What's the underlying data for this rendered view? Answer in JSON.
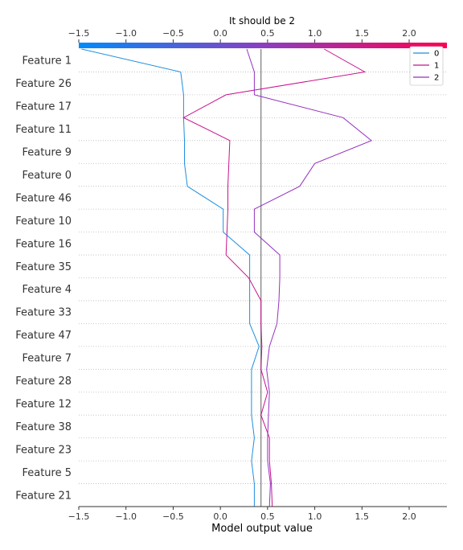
{
  "chart_data": {
    "type": "line",
    "title": "It should be 2",
    "xlabel": "Model output value",
    "xlim": [
      -1.5,
      2.4
    ],
    "xticks": [
      -1.5,
      -1.0,
      -0.5,
      0.0,
      0.5,
      1.0,
      1.5,
      2.0
    ],
    "tick_labels": [
      "−1.5",
      "−1.0",
      "−0.5",
      "0.0",
      "0.5",
      "1.0",
      "1.5",
      "2.0"
    ],
    "base_value": 0.43,
    "grid": "dotted horizontal",
    "legend_position": "top-right",
    "colorbar": {
      "from": "#008bfb",
      "to": "#ff0052"
    },
    "features": [
      "Feature 1",
      "Feature 26",
      "Feature 17",
      "Feature 11",
      "Feature 9",
      "Feature 0",
      "Feature 46",
      "Feature 10",
      "Feature 16",
      "Feature 35",
      "Feature 4",
      "Feature 33",
      "Feature 47",
      "Feature 7",
      "Feature 28",
      "Feature 12",
      "Feature 38",
      "Feature 23",
      "Feature 5",
      "Feature 21"
    ],
    "series": [
      {
        "name": "0",
        "color": "#1f8ee0",
        "values": [
          -1.47,
          -0.42,
          -0.39,
          -0.39,
          -0.38,
          -0.38,
          -0.35,
          0.03,
          0.03,
          0.31,
          0.31,
          0.31,
          0.31,
          0.41,
          0.33,
          0.33,
          0.33,
          0.36,
          0.33,
          0.36,
          0.36
        ]
      },
      {
        "name": "1",
        "color": "#c8138e",
        "values": [
          1.1,
          1.53,
          0.06,
          -0.39,
          0.1,
          0.09,
          0.08,
          0.08,
          0.07,
          0.06,
          0.3,
          0.43,
          0.43,
          0.44,
          0.43,
          0.5,
          0.43,
          0.52,
          0.52,
          0.54,
          0.55
        ]
      },
      {
        "name": "2",
        "color": "#9532c0",
        "values": [
          0.28,
          0.36,
          0.36,
          1.3,
          1.6,
          1.0,
          0.84,
          0.36,
          0.36,
          0.63,
          0.63,
          0.62,
          0.6,
          0.52,
          0.49,
          0.52,
          0.51,
          0.5,
          0.5,
          0.53,
          0.52
        ]
      }
    ]
  }
}
